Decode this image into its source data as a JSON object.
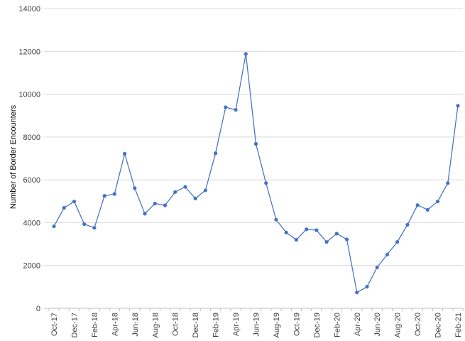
{
  "chart_data": {
    "type": "line",
    "title": "",
    "xlabel": "",
    "ylabel": "Number of Border Encounters",
    "ylim": [
      0,
      14000
    ],
    "yticks": [
      0,
      2000,
      4000,
      6000,
      8000,
      10000,
      12000,
      14000
    ],
    "grid": "horizontal",
    "legend": "none",
    "x": [
      "Oct-17",
      "Nov-17",
      "Dec-17",
      "Jan-18",
      "Feb-18",
      "Mar-18",
      "Apr-18",
      "May-18",
      "Jun-18",
      "Jul-18",
      "Aug-18",
      "Sep-18",
      "Oct-18",
      "Nov-18",
      "Dec-18",
      "Jan-19",
      "Feb-19",
      "Mar-19",
      "Apr-19",
      "May-19",
      "Jun-19",
      "Jul-19",
      "Aug-19",
      "Sep-19",
      "Oct-19",
      "Nov-19",
      "Dec-19",
      "Jan-20",
      "Feb-20",
      "Mar-20",
      "Apr-20",
      "May-20",
      "Jun-20",
      "Jul-20",
      "Aug-20",
      "Sep-20",
      "Oct-20",
      "Nov-20",
      "Dec-20",
      "Jan-21",
      "Feb-21"
    ],
    "x_tick_labels": [
      "Oct-17",
      "Dec-17",
      "Feb-18",
      "Apr-18",
      "Jun-18",
      "Aug-18",
      "Oct-18",
      "Dec-18",
      "Feb-19",
      "Apr-19",
      "Jun-19",
      "Aug-19",
      "Oct-19",
      "Dec-19",
      "Feb-20",
      "Apr-20",
      "Jun-20",
      "Aug-20",
      "Oct-20",
      "Dec-20",
      "Feb-21"
    ],
    "series": [
      {
        "color": "#4472C4",
        "values": [
          3830,
          4690,
          4990,
          3930,
          3760,
          5250,
          5340,
          7220,
          5610,
          4420,
          4890,
          4810,
          5430,
          5670,
          5130,
          5510,
          7240,
          9390,
          9270,
          11880,
          7680,
          5850,
          4140,
          3540,
          3200,
          3690,
          3650,
          3100,
          3490,
          3220,
          740,
          1010,
          1910,
          2510,
          3100,
          3900,
          4820,
          4600,
          4990,
          5850,
          9460
        ]
      }
    ]
  }
}
